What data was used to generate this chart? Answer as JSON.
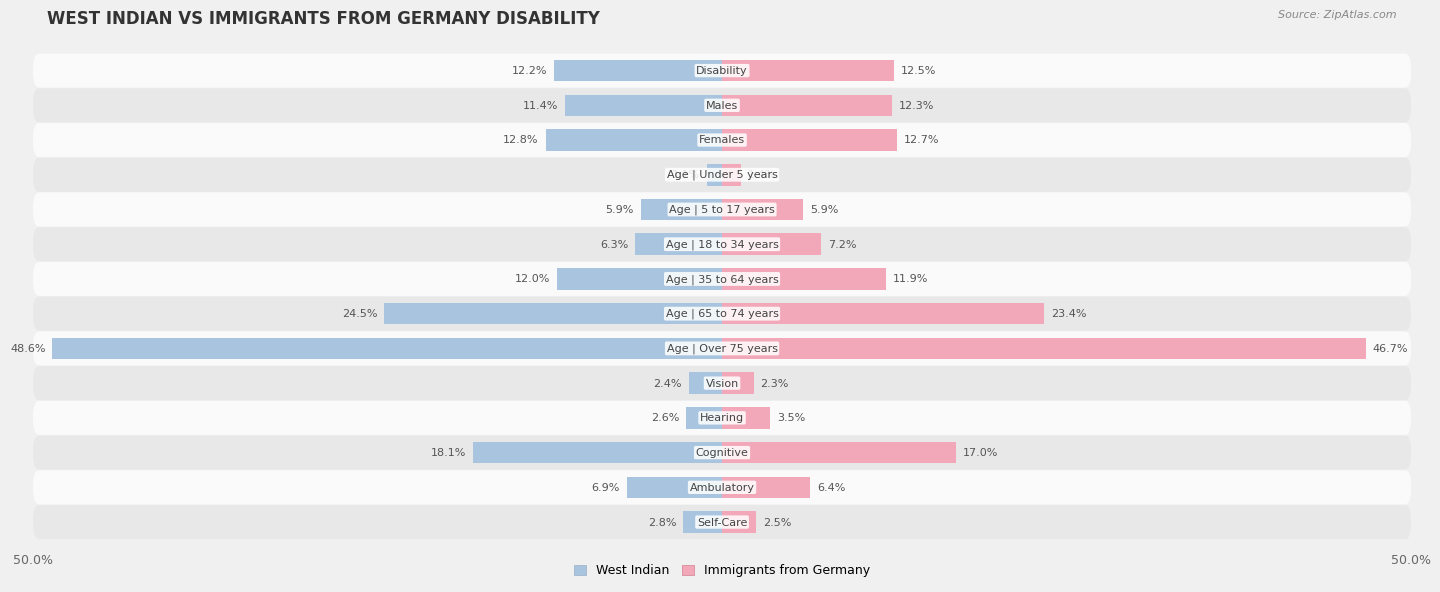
{
  "title": "WEST INDIAN VS IMMIGRANTS FROM GERMANY DISABILITY",
  "source": "Source: ZipAtlas.com",
  "categories": [
    "Disability",
    "Males",
    "Females",
    "Age | Under 5 years",
    "Age | 5 to 17 years",
    "Age | 18 to 34 years",
    "Age | 35 to 64 years",
    "Age | 65 to 74 years",
    "Age | Over 75 years",
    "Vision",
    "Hearing",
    "Cognitive",
    "Ambulatory",
    "Self-Care"
  ],
  "west_indian": [
    12.2,
    11.4,
    12.8,
    1.1,
    5.9,
    6.3,
    12.0,
    24.5,
    48.6,
    2.4,
    2.6,
    18.1,
    6.9,
    2.8
  ],
  "germany": [
    12.5,
    12.3,
    12.7,
    1.4,
    5.9,
    7.2,
    11.9,
    23.4,
    46.7,
    2.3,
    3.5,
    17.0,
    6.4,
    2.5
  ],
  "max_val": 50.0,
  "color_west_indian": "#a8c4de",
  "color_germany": "#f2a8b8",
  "bg_color": "#f0f0f0",
  "row_light": "#fafafa",
  "row_dark": "#e8e8e8",
  "bar_height": 0.62,
  "title_fontsize": 12,
  "label_fontsize": 8,
  "value_fontsize": 8,
  "legend_fontsize": 9
}
